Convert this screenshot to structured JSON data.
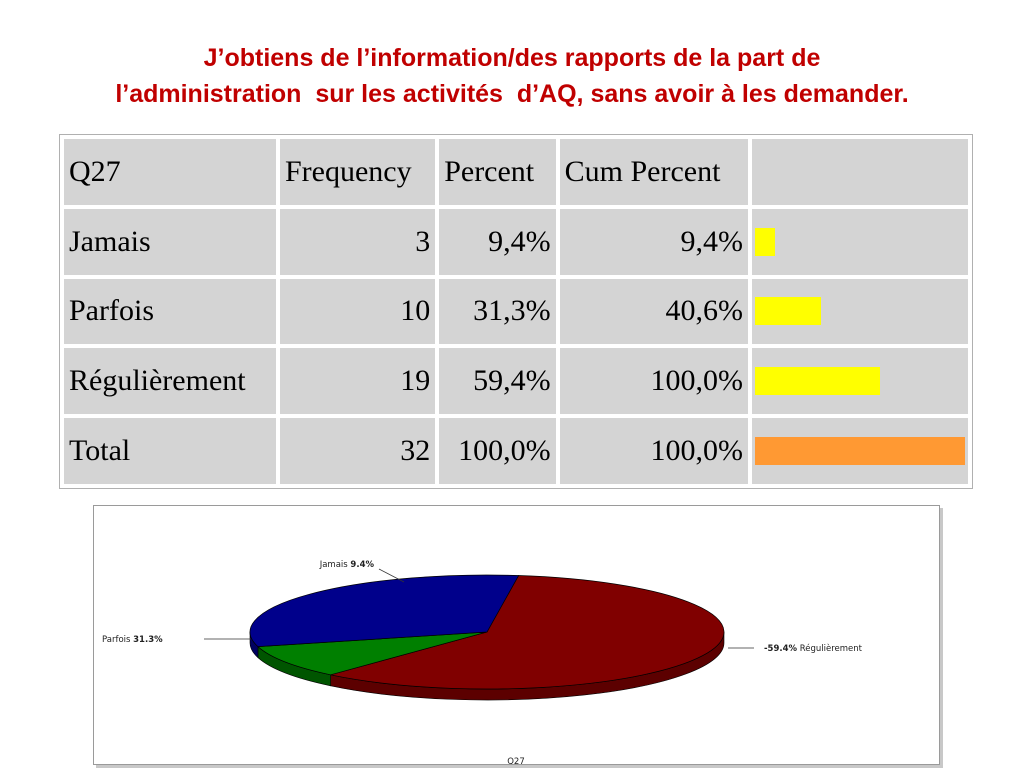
{
  "title": {
    "line1": "J’obtiens de l’information/des rapports de la part de",
    "line2": "l’administration  sur les activités  d’AQ, sans avoir à les demander."
  },
  "table": {
    "headers": [
      "Q27",
      "Frequency",
      "Percent",
      "Cum Percent",
      ""
    ],
    "rows": [
      {
        "label": "Jamais",
        "frequency": "3",
        "percent": "9,4%",
        "cum_percent": "9,4%",
        "bar_fraction": 0.094,
        "bar_color": "#ffff00"
      },
      {
        "label": "Parfois",
        "frequency": "10",
        "percent": "31,3%",
        "cum_percent": "40,6%",
        "bar_fraction": 0.313,
        "bar_color": "#ffff00"
      },
      {
        "label": "Régulièrement",
        "frequency": "19",
        "percent": "59,4%",
        "cum_percent": "100,0%",
        "bar_fraction": 0.594,
        "bar_color": "#ffff00"
      },
      {
        "label": "Total",
        "frequency": "32",
        "percent": "100,0%",
        "cum_percent": "100,0%",
        "bar_fraction": 1.0,
        "bar_color": "#ff9933"
      }
    ]
  },
  "chart_data": {
    "type": "pie",
    "title": "",
    "xlabel": "Q27",
    "slices": [
      {
        "label": "Régulièrement",
        "percent_label": "59.4%",
        "value": 59.4,
        "color": "#800000",
        "side_color": "#5c0000"
      },
      {
        "label": "Jamais",
        "percent_label": "9.4%",
        "value": 9.4,
        "color": "#007f00",
        "side_color": "#005500"
      },
      {
        "label": "Parfois",
        "percent_label": "31.3%",
        "value": 31.3,
        "color": "#00008b",
        "side_color": "#000060"
      }
    ],
    "label_texts": {
      "jamais": "Jamais",
      "jamais_pct": "9.4%",
      "parfois": "Parfois",
      "parfois_pct": "31.3%",
      "regulierement": "Régulièrement",
      "regulierement_pct": "59.4%"
    }
  }
}
